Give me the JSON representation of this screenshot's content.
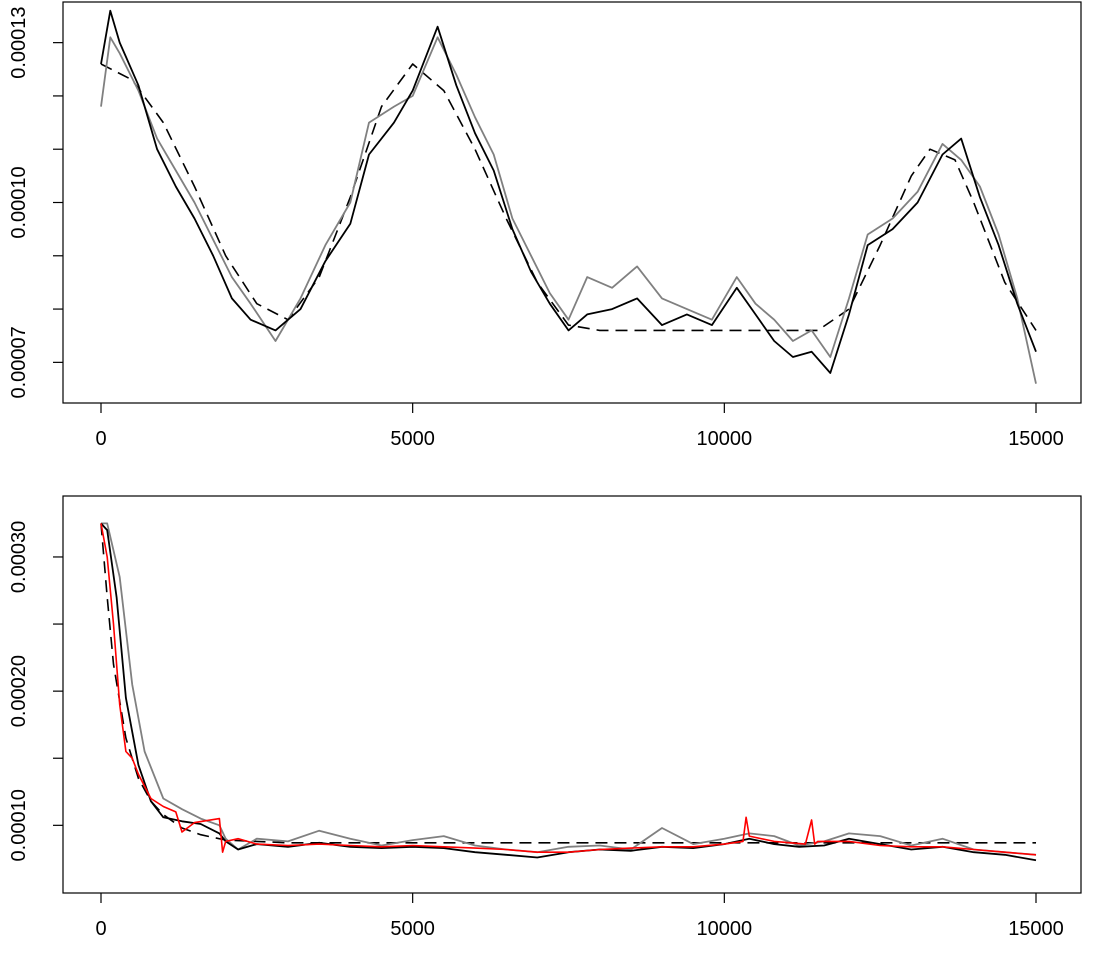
{
  "colors": {
    "black": "#000000",
    "gray": "#808080",
    "red": "#ff0000"
  },
  "chart_data": [
    {
      "type": "line",
      "title": "",
      "xlabel": "",
      "ylabel": "",
      "xlim": [
        0,
        15000
      ],
      "ylim": [
        6.5e-05,
        0.000135
      ],
      "grid": false,
      "legend": "none",
      "x_ticks": [
        0,
        5000,
        10000,
        15000
      ],
      "x_tick_labels": [
        "0",
        "5000",
        "10000",
        "15000"
      ],
      "y_ticks": [
        7e-05,
        0.0001,
        0.00013
      ],
      "y_tick_labels": [
        "0.00007",
        "0.00010",
        "0.00013"
      ],
      "y_minor_ticks": [
        7e-05,
        8e-05,
        9e-05,
        0.0001,
        0.00011,
        0.00012,
        0.00013
      ],
      "series": [
        {
          "style": "dashed",
          "color": "black",
          "x": [
            0,
            500,
            1000,
            1500,
            2000,
            2500,
            3000,
            3500,
            4000,
            4500,
            5000,
            5500,
            6000,
            6500,
            7000,
            7500,
            8000,
            9000,
            10000,
            11000,
            11500,
            12000,
            12500,
            13000,
            13300,
            13700,
            14000,
            14500,
            15000
          ],
          "y": [
            0.000126,
            0.000123,
            0.000115,
            0.000103,
            9e-05,
            8.1e-05,
            7.8e-05,
            8.6e-05,
            0.000101,
            0.000118,
            0.000126,
            0.000121,
            0.00011,
            9.7e-05,
            8.5e-05,
            7.7e-05,
            7.6e-05,
            7.6e-05,
            7.6e-05,
            7.6e-05,
            7.6e-05,
            8e-05,
            9.2e-05,
            0.000105,
            0.00011,
            0.000108,
            0.0001,
            8.5e-05,
            7.6e-05
          ]
        },
        {
          "style": "solid",
          "color": "gray",
          "x": [
            0,
            150,
            300,
            600,
            900,
            1200,
            1500,
            1800,
            2100,
            2400,
            2800,
            3200,
            3600,
            4000,
            4300,
            4700,
            5000,
            5400,
            5700,
            6000,
            6300,
            6600,
            6900,
            7200,
            7500,
            7800,
            8200,
            8600,
            9000,
            9400,
            9800,
            10200,
            10500,
            10800,
            11100,
            11400,
            11700,
            12000,
            12300,
            12700,
            13100,
            13500,
            13800,
            14100,
            14400,
            14700,
            15000
          ],
          "y": [
            0.000118,
            0.000131,
            0.000128,
            0.000121,
            0.000112,
            0.000106,
            0.0001,
            9.3e-05,
            8.6e-05,
            8.1e-05,
            7.4e-05,
            8.2e-05,
            9.2e-05,
            0.0001,
            0.000115,
            0.000118,
            0.00012,
            0.000131,
            0.000124,
            0.000116,
            0.000109,
            9.7e-05,
            9e-05,
            8.3e-05,
            7.8e-05,
            8.6e-05,
            8.4e-05,
            8.8e-05,
            8.2e-05,
            8e-05,
            7.8e-05,
            8.6e-05,
            8.1e-05,
            7.8e-05,
            7.4e-05,
            7.6e-05,
            7.1e-05,
            8.2e-05,
            9.4e-05,
            9.7e-05,
            0.000102,
            0.000111,
            0.000108,
            0.000103,
            9.4e-05,
            8.2e-05,
            6.6e-05
          ]
        },
        {
          "style": "solid",
          "color": "black",
          "x": [
            0,
            150,
            300,
            600,
            900,
            1200,
            1500,
            1800,
            2100,
            2400,
            2800,
            3200,
            3600,
            4000,
            4300,
            4700,
            5000,
            5400,
            5700,
            6000,
            6300,
            6600,
            6900,
            7200,
            7500,
            7800,
            8200,
            8600,
            9000,
            9400,
            9800,
            10200,
            10500,
            10800,
            11100,
            11400,
            11700,
            12000,
            12300,
            12700,
            13100,
            13500,
            13800,
            14100,
            14400,
            14700,
            15000
          ],
          "y": [
            0.000126,
            0.000136,
            0.00013,
            0.000122,
            0.00011,
            0.000103,
            9.7e-05,
            9e-05,
            8.2e-05,
            7.8e-05,
            7.6e-05,
            8e-05,
            8.9e-05,
            9.6e-05,
            0.000109,
            0.000115,
            0.000121,
            0.000133,
            0.000122,
            0.000113,
            0.000106,
            9.5e-05,
            8.7e-05,
            8.1e-05,
            7.6e-05,
            7.9e-05,
            8e-05,
            8.2e-05,
            7.7e-05,
            7.9e-05,
            7.7e-05,
            8.4e-05,
            7.9e-05,
            7.4e-05,
            7.1e-05,
            7.2e-05,
            6.8e-05,
            7.9e-05,
            9.2e-05,
            9.5e-05,
            0.0001,
            0.000109,
            0.000112,
            0.000101,
            9.2e-05,
            8.1e-05,
            7.2e-05
          ]
        }
      ]
    },
    {
      "type": "line",
      "title": "",
      "xlabel": "",
      "ylabel": "",
      "xlim": [
        0,
        15000
      ],
      "ylim": [
        6e-05,
        0.000335
      ],
      "grid": false,
      "legend": "none",
      "x_ticks": [
        0,
        5000,
        10000,
        15000
      ],
      "x_tick_labels": [
        "0",
        "5000",
        "10000",
        "15000"
      ],
      "y_ticks": [
        0.0001,
        0.0002,
        0.0003
      ],
      "y_tick_labels": [
        "0.00010",
        "0.00020",
        "0.00030"
      ],
      "y_minor_ticks": [
        0.0001,
        0.00015,
        0.0002,
        0.00025,
        0.0003
      ],
      "series": [
        {
          "style": "dashed",
          "color": "black",
          "x": [
            0,
            100,
            200,
            400,
            600,
            800,
            1000,
            1300,
            1600,
            2000,
            2500,
            3000,
            15000
          ],
          "y": [
            0.000325,
            0.00027,
            0.00022,
            0.000165,
            0.000135,
            0.000118,
            0.000108,
            9.8e-05,
            9.3e-05,
            8.9e-05,
            8.8e-05,
            8.7e-05,
            8.7e-05
          ]
        },
        {
          "style": "solid",
          "color": "gray",
          "x": [
            0,
            100,
            300,
            500,
            700,
            1000,
            1300,
            1600,
            1900,
            2000,
            2200,
            2500,
            3000,
            3500,
            4000,
            4500,
            5000,
            5500,
            6000,
            6500,
            7000,
            7500,
            8000,
            8500,
            9000,
            9500,
            10000,
            10400,
            10800,
            11200,
            11600,
            12000,
            12500,
            13000,
            13500,
            14000,
            14500,
            15000
          ],
          "y": [
            0.000325,
            0.000325,
            0.000285,
            0.000205,
            0.000155,
            0.00012,
            0.000112,
            0.000105,
            0.0001,
            9e-05,
            8.2e-05,
            9e-05,
            8.8e-05,
            9.6e-05,
            9e-05,
            8.5e-05,
            8.9e-05,
            9.2e-05,
            8.5e-05,
            8.2e-05,
            8e-05,
            8.4e-05,
            8.5e-05,
            8.2e-05,
            9.8e-05,
            8.6e-05,
            9e-05,
            9.4e-05,
            9.2e-05,
            8.5e-05,
            8.8e-05,
            9.4e-05,
            9.2e-05,
            8.5e-05,
            9e-05,
            8.2e-05,
            8e-05,
            7.8e-05
          ]
        },
        {
          "style": "solid",
          "color": "black",
          "x": [
            0,
            100,
            250,
            400,
            600,
            800,
            1000,
            1300,
            1600,
            1900,
            2000,
            2200,
            2500,
            3000,
            3500,
            4000,
            4500,
            5000,
            5500,
            6000,
            6500,
            7000,
            7500,
            8000,
            8500,
            9000,
            9500,
            10000,
            10400,
            10800,
            11200,
            11600,
            12000,
            12500,
            13000,
            13500,
            14000,
            14500,
            15000
          ],
          "y": [
            0.000325,
            0.00032,
            0.00027,
            0.000195,
            0.000145,
            0.000118,
            0.000106,
            0.000103,
            0.000101,
            9.4e-05,
            8.8e-05,
            8.2e-05,
            8.6e-05,
            8.4e-05,
            8.7e-05,
            8.4e-05,
            8.3e-05,
            8.4e-05,
            8.3e-05,
            8e-05,
            7.8e-05,
            7.6e-05,
            8e-05,
            8.2e-05,
            8.1e-05,
            8.4e-05,
            8.3e-05,
            8.6e-05,
            9e-05,
            8.6e-05,
            8.4e-05,
            8.5e-05,
            9e-05,
            8.6e-05,
            8.2e-05,
            8.4e-05,
            8e-05,
            7.8e-05,
            7.4e-05
          ]
        },
        {
          "style": "solid",
          "color": "red",
          "x": [
            0,
            100,
            200,
            300,
            400,
            500,
            600,
            800,
            1000,
            1200,
            1300,
            1500,
            1900,
            1950,
            2000,
            2200,
            2500,
            3000,
            3500,
            4000,
            4500,
            5000,
            5500,
            6000,
            6500,
            7000,
            7500,
            8000,
            8500,
            9000,
            9500,
            10000,
            10300,
            10350,
            10400,
            10800,
            11300,
            11400,
            11450,
            11500,
            12000,
            12500,
            13000,
            13500,
            14000,
            14500,
            15000
          ],
          "y": [
            0.000325,
            0.0003,
            0.00025,
            0.00019,
            0.000155,
            0.00015,
            0.000138,
            0.00012,
            0.000114,
            0.00011,
            9.5e-05,
            0.000102,
            0.000105,
            8e-05,
            8.8e-05,
            9e-05,
            8.6e-05,
            8.5e-05,
            8.6e-05,
            8.5e-05,
            8.4e-05,
            8.5e-05,
            8.4e-05,
            8.3e-05,
            8.2e-05,
            8e-05,
            8e-05,
            8.2e-05,
            8.3e-05,
            8.4e-05,
            8.4e-05,
            8.6e-05,
            8.8e-05,
            0.000106,
            9.2e-05,
            8.8e-05,
            8.6e-05,
            0.000104,
            8.6e-05,
            8.8e-05,
            8.8e-05,
            8.5e-05,
            8.4e-05,
            8.4e-05,
            8.2e-05,
            8e-05,
            7.8e-05
          ]
        }
      ]
    }
  ]
}
